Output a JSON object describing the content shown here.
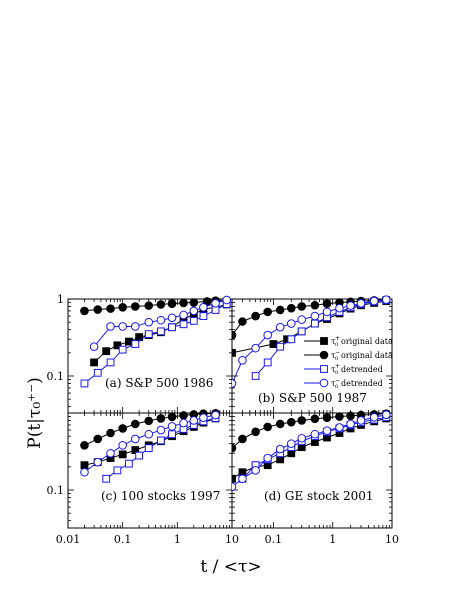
{
  "figure": {
    "xlabel": "t / <τ>",
    "ylabel": "P(t|τ₀⁺⁻)",
    "x_ticks": [
      {
        "value": 0.01,
        "label": "0.01"
      },
      {
        "value": 0.1,
        "label": "0.1"
      },
      {
        "value": 1,
        "label": "1"
      },
      {
        "value": 10,
        "label": "10"
      }
    ],
    "x_ticks_right": [
      {
        "value": 0.1,
        "label": "0.1"
      },
      {
        "value": 1,
        "label": "1"
      },
      {
        "value": 10,
        "label": "10"
      }
    ],
    "y_ticks_top": [
      {
        "value": 1,
        "label": "1"
      },
      {
        "value": 0.1,
        "label": "0.1"
      }
    ],
    "y_ticks_bottom": [
      {
        "value": 0.1,
        "label": "0.1"
      }
    ],
    "colors": {
      "original": "#000000",
      "detrended": "#1a1aee"
    }
  },
  "legend": {
    "placement": "right",
    "entries": [
      {
        "sup": "+",
        "text": "original data",
        "marker": "filled-square"
      },
      {
        "sup": "−",
        "text": "original data",
        "marker": "filled-circle"
      },
      {
        "sup": "+",
        "text": "detrended",
        "marker": "open-square"
      },
      {
        "sup": "−",
        "text": "detrended",
        "marker": "open-circle"
      }
    ]
  },
  "chart_data": [
    {
      "type": "line",
      "panel": "top-left",
      "label": "(a) S&P 500 1986",
      "xscale": "log",
      "yscale": "log",
      "xlim": [
        0.01,
        10
      ],
      "ylim": [
        0.045,
        1
      ],
      "series": [
        {
          "marker": "filled-square",
          "color": "#000000",
          "x": [
            0.03,
            0.05,
            0.08,
            0.13,
            0.2,
            0.3,
            0.5,
            0.8,
            1.3,
            2.0,
            3.0,
            5.0,
            8.0
          ],
          "y": [
            0.15,
            0.21,
            0.25,
            0.28,
            0.32,
            0.34,
            0.37,
            0.43,
            0.55,
            0.63,
            0.74,
            0.78,
            0.85
          ]
        },
        {
          "marker": "filled-circle",
          "color": "#000000",
          "x": [
            0.02,
            0.035,
            0.06,
            0.1,
            0.17,
            0.3,
            0.5,
            0.8,
            1.3,
            2.0,
            3.5,
            5.0,
            8.0
          ],
          "y": [
            0.7,
            0.73,
            0.75,
            0.78,
            0.8,
            0.82,
            0.85,
            0.87,
            0.89,
            0.9,
            0.93,
            0.95,
            0.97
          ]
        },
        {
          "marker": "open-square",
          "color": "#1a1aee",
          "x": [
            0.02,
            0.035,
            0.06,
            0.1,
            0.17,
            0.3,
            0.5,
            0.8,
            1.3,
            2.0,
            3.0,
            5.0,
            8.0
          ],
          "y": [
            0.08,
            0.11,
            0.15,
            0.22,
            0.26,
            0.35,
            0.38,
            0.43,
            0.47,
            0.52,
            0.6,
            0.72,
            0.86
          ]
        },
        {
          "marker": "open-circle",
          "color": "#1a1aee",
          "x": [
            0.03,
            0.06,
            0.1,
            0.17,
            0.3,
            0.5,
            0.8,
            1.3,
            2.0,
            3.0,
            5.0,
            8.0
          ],
          "y": [
            0.24,
            0.44,
            0.44,
            0.44,
            0.5,
            0.53,
            0.57,
            0.62,
            0.7,
            0.78,
            0.88,
            0.97
          ]
        }
      ]
    },
    {
      "type": "line",
      "panel": "top-right",
      "label": "(b) S&P 500 1987",
      "xscale": "log",
      "yscale": "log",
      "xlim": [
        0.02,
        10
      ],
      "ylim": [
        0.045,
        1
      ],
      "series": [
        {
          "marker": "filled-square",
          "color": "#000000",
          "x": [
            0.02,
            0.1,
            0.17,
            0.3,
            0.5,
            0.8,
            1.3,
            2.0,
            3.0,
            5.0,
            8.0
          ],
          "y": [
            0.2,
            0.26,
            0.3,
            0.38,
            0.48,
            0.55,
            0.65,
            0.75,
            0.83,
            0.89,
            0.94
          ]
        },
        {
          "marker": "filled-circle",
          "color": "#000000",
          "x": [
            0.02,
            0.03,
            0.05,
            0.08,
            0.13,
            0.2,
            0.3,
            0.5,
            0.8,
            1.3,
            2.0,
            3.0,
            5.0,
            8.0
          ],
          "y": [
            0.34,
            0.51,
            0.6,
            0.68,
            0.72,
            0.76,
            0.8,
            0.83,
            0.87,
            0.9,
            0.92,
            0.94,
            0.96,
            0.98
          ]
        },
        {
          "marker": "open-square",
          "color": "#1a1aee",
          "x": [
            0.05,
            0.08,
            0.13,
            0.2,
            0.3,
            0.5,
            0.8,
            1.3,
            2.0,
            3.0,
            5.0,
            8.0
          ],
          "y": [
            0.1,
            0.15,
            0.24,
            0.3,
            0.38,
            0.48,
            0.58,
            0.68,
            0.78,
            0.86,
            0.93,
            0.97
          ]
        },
        {
          "marker": "open-circle",
          "color": "#1a1aee",
          "x": [
            0.02,
            0.03,
            0.05,
            0.08,
            0.13,
            0.2,
            0.3,
            0.5,
            0.8,
            1.3,
            2.0,
            3.0,
            5.0,
            8.0
          ],
          "y": [
            0.08,
            0.16,
            0.23,
            0.34,
            0.43,
            0.48,
            0.54,
            0.6,
            0.68,
            0.76,
            0.82,
            0.88,
            0.94,
            0.98
          ]
        }
      ]
    },
    {
      "type": "line",
      "panel": "bottom-left",
      "label": "(c) 100 stocks 1997",
      "xscale": "log",
      "yscale": "log",
      "xlim": [
        0.01,
        10
      ],
      "ylim": [
        0.045,
        1
      ],
      "series": [
        {
          "marker": "filled-square",
          "color": "#000000",
          "x": [
            0.02,
            0.035,
            0.06,
            0.1,
            0.17,
            0.3,
            0.5,
            0.8,
            1.3,
            2.0,
            3.0,
            5.0
          ],
          "y": [
            0.21,
            0.23,
            0.26,
            0.29,
            0.33,
            0.38,
            0.43,
            0.5,
            0.58,
            0.66,
            0.75,
            0.85
          ]
        },
        {
          "marker": "filled-circle",
          "color": "#000000",
          "x": [
            0.02,
            0.035,
            0.06,
            0.1,
            0.17,
            0.3,
            0.5,
            0.8,
            1.3,
            2.0,
            3.0,
            5.0
          ],
          "y": [
            0.38,
            0.46,
            0.55,
            0.63,
            0.72,
            0.79,
            0.85,
            0.89,
            0.93,
            0.96,
            0.98,
            0.99
          ]
        },
        {
          "marker": "open-square",
          "color": "#1a1aee",
          "x": [
            0.05,
            0.08,
            0.13,
            0.2,
            0.3,
            0.5,
            0.8,
            1.3,
            2.0,
            3.0,
            5.0
          ],
          "y": [
            0.14,
            0.18,
            0.22,
            0.28,
            0.35,
            0.44,
            0.53,
            0.62,
            0.7,
            0.78,
            0.86
          ]
        },
        {
          "marker": "open-circle",
          "color": "#1a1aee",
          "x": [
            0.02,
            0.035,
            0.06,
            0.1,
            0.17,
            0.3,
            0.5,
            0.8,
            1.3,
            2.0,
            3.0,
            5.0
          ],
          "y": [
            0.17,
            0.23,
            0.3,
            0.38,
            0.46,
            0.53,
            0.6,
            0.67,
            0.74,
            0.8,
            0.87,
            0.94
          ]
        }
      ]
    },
    {
      "type": "line",
      "panel": "bottom-right",
      "label": "(d) GE stock 2001",
      "xscale": "log",
      "yscale": "log",
      "xlim": [
        0.02,
        10
      ],
      "ylim": [
        0.045,
        1
      ],
      "series": [
        {
          "marker": "filled-square",
          "color": "#000000",
          "x": [
            0.02,
            0.03,
            0.05,
            0.08,
            0.13,
            0.2,
            0.3,
            0.5,
            0.8,
            1.3,
            2.0,
            3.0,
            5.0,
            8.0
          ],
          "y": [
            0.14,
            0.17,
            0.2,
            0.21,
            0.25,
            0.3,
            0.36,
            0.42,
            0.48,
            0.55,
            0.63,
            0.7,
            0.78,
            0.85
          ]
        },
        {
          "marker": "filled-circle",
          "color": "#000000",
          "x": [
            0.02,
            0.03,
            0.05,
            0.08,
            0.13,
            0.2,
            0.3,
            0.5,
            0.8,
            1.3,
            2.0,
            3.0,
            5.0,
            8.0
          ],
          "y": [
            0.35,
            0.46,
            0.57,
            0.66,
            0.72,
            0.76,
            0.8,
            0.84,
            0.87,
            0.9,
            0.92,
            0.94,
            0.96,
            0.98
          ]
        },
        {
          "marker": "open-square",
          "color": "#1a1aee",
          "x": [
            0.03,
            0.05,
            0.08,
            0.13,
            0.2,
            0.3,
            0.5,
            0.8,
            1.3,
            2.0,
            3.0,
            5.0,
            8.0
          ],
          "y": [
            0.14,
            0.21,
            0.25,
            0.3,
            0.36,
            0.43,
            0.5,
            0.57,
            0.63,
            0.7,
            0.76,
            0.82,
            0.88
          ]
        },
        {
          "marker": "open-circle",
          "color": "#1a1aee",
          "x": [
            0.02,
            0.03,
            0.05,
            0.08,
            0.13,
            0.2,
            0.3,
            0.5,
            0.8,
            1.3,
            2.0,
            3.0,
            5.0,
            8.0
          ],
          "y": [
            0.11,
            0.14,
            0.18,
            0.26,
            0.34,
            0.4,
            0.47,
            0.53,
            0.59,
            0.65,
            0.72,
            0.8,
            0.88,
            0.95
          ]
        }
      ]
    }
  ]
}
